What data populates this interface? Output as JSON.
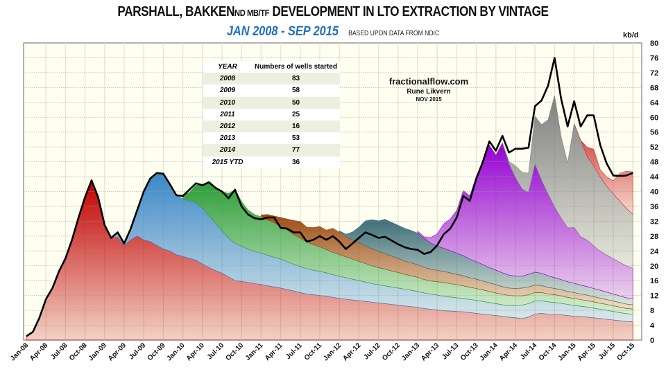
{
  "title": {
    "main_a": "PARSHALL, BAKKEN",
    "main_b": "ND MB/TF",
    "main_c": " DEVELOPMENT IN LTO EXTRACTION BY VINTAGE",
    "range": "JAN 2008 - SEP 2015",
    "basis": "BASED UPON DATA FROM NDIC"
  },
  "credit": {
    "site": "fractionalflow.com",
    "author": "Rune Likvern",
    "date": "NOV 2015"
  },
  "wells_table": {
    "header_year": "YEAR",
    "header_count": "Numbers of wells started",
    "rows": [
      {
        "year": "2008",
        "count": "83"
      },
      {
        "year": "2009",
        "count": "58"
      },
      {
        "year": "2010",
        "count": "50"
      },
      {
        "year": "2011",
        "count": "25"
      },
      {
        "year": "2012",
        "count": "16"
      },
      {
        "year": "2013",
        "count": "53"
      },
      {
        "year": "2014",
        "count": "77"
      },
      {
        "year": "2015 YTD",
        "count": "36"
      }
    ]
  },
  "chart_data": {
    "type": "area",
    "stacked": true,
    "title": "PARSHALL, BAKKEN ND MB/TF DEVELOPMENT IN LTO EXTRACTION BY VINTAGE",
    "subtitle": "JAN 2008 - SEP 2015",
    "ylabel": "kb/d",
    "xlabel": "",
    "ylim": [
      0,
      80
    ],
    "y_ticks": [
      0,
      4,
      8,
      12,
      16,
      20,
      24,
      28,
      32,
      36,
      40,
      44,
      48,
      52,
      56,
      60,
      64,
      68,
      72,
      76,
      80
    ],
    "y_axis_side": "right",
    "grid": true,
    "x_tick_labels": [
      "Jan-08",
      "Apr-08",
      "Jul-08",
      "Oct-08",
      "Jan-09",
      "Apr-09",
      "Jul-09",
      "Oct-09",
      "Jan-10",
      "Apr-10",
      "Jul-10",
      "Oct-10",
      "Jan-11",
      "Apr-11",
      "Jul-11",
      "Oct-11",
      "Jan-12",
      "Apr-12",
      "Jul-12",
      "Oct-12",
      "Jan-13",
      "Apr-13",
      "Jul-13",
      "Oct-13",
      "Jan-14",
      "Apr-14",
      "Jul-14",
      "Oct-14",
      "Jan-15",
      "Apr-15",
      "Jul-15",
      "Oct-15"
    ],
    "x_start": "Jan-08",
    "months": 94,
    "total": [
      1.0,
      2.2,
      6,
      11,
      14,
      18.5,
      22,
      27,
      33,
      38.5,
      43,
      38.5,
      31,
      27.5,
      29,
      26,
      30,
      35,
      40,
      43.5,
      45,
      44.8,
      42,
      39,
      38.8,
      40.5,
      42.2,
      41.7,
      42.5,
      41,
      40,
      38.2,
      40.5,
      36,
      33.8,
      32.8,
      32.5,
      33,
      33,
      30.2,
      30,
      29,
      29,
      26.5,
      27,
      28,
      27,
      28,
      26.5,
      24.5,
      26,
      27.5,
      29,
      28.3,
      27.5,
      27.8,
      26.8,
      25.8,
      25,
      24.5,
      24.3,
      23.2,
      23.7,
      25.5,
      28.5,
      30,
      33,
      38.8,
      37.5,
      43.5,
      48,
      53.5,
      51,
      55,
      50.5,
      51.5,
      51.5,
      51.8,
      63,
      64.5,
      68.5,
      76,
      65,
      57.5,
      64.3,
      57.5,
      60.5,
      60.5,
      52.5,
      47.5,
      44.3,
      44.2,
      44.3,
      45
    ],
    "series": [
      {
        "name": "2008 vintage",
        "color": "#c00000",
        "start": 0,
        "values": [
          1.0,
          2.2,
          6,
          11,
          14,
          18.5,
          22,
          27,
          33,
          38.5,
          43,
          38.5,
          31,
          27.5,
          27.7,
          25.5,
          27,
          28,
          27,
          26.5,
          25.5,
          24.5,
          24,
          23,
          22.5,
          22,
          21.5,
          20.5,
          19.5,
          18.7,
          18,
          17,
          16,
          15.8,
          15.5,
          15.2,
          15,
          14.6,
          14.3,
          14,
          13.6,
          13.2,
          12.8,
          12.4,
          12.2,
          12,
          11.8,
          11.5,
          11.2,
          11,
          10.8,
          10.6,
          10.4,
          10.2,
          10,
          9.8,
          9.6,
          9.4,
          9.2,
          9,
          8.8,
          8.5,
          8.3,
          8.1,
          7.9,
          7.8,
          7.7,
          7.6,
          7.4,
          7.2,
          7,
          6.8,
          6.6,
          6.4,
          6.2,
          6,
          5.8,
          6.2,
          7,
          7.2,
          7,
          6.9,
          6.8,
          6.6,
          6.4,
          6.3,
          6.2,
          6,
          5.8,
          5.6,
          5.4,
          5.2,
          5,
          4.9
        ]
      },
      {
        "name": "2009 vintage",
        "color": "#3a86c8",
        "start": 12,
        "values": [
          0,
          0,
          1.3,
          0.5,
          3,
          7,
          13,
          17,
          19.5,
          20.3,
          18,
          16,
          15.5,
          15.5,
          15.5,
          15,
          14,
          12.8,
          11.5,
          10.5,
          10,
          9.5,
          9,
          8.6,
          8.4,
          8.2,
          8,
          7.8,
          7.5,
          7.2,
          7,
          6.8,
          6.6,
          6.5,
          6.3,
          6.1,
          6,
          5.8,
          5.6,
          5.4,
          5.2,
          5,
          4.9,
          4.8,
          4.7,
          4.6,
          4.5,
          4.4,
          4.3,
          4.2,
          4.1,
          4,
          3.9,
          3.8,
          3.7,
          3.6,
          3.5,
          3.5,
          3.4,
          3.3,
          3.2,
          3.1,
          3.1,
          3.3,
          3.6,
          3.6,
          3.5,
          3.4,
          3.3,
          3.2,
          3.1,
          3.0,
          2.9,
          2.8,
          2.7,
          2.6,
          2.5,
          2.4,
          2.3,
          2.2,
          2.1,
          2.1
        ]
      },
      {
        "name": "2010 vintage",
        "color": "#2e9e3a",
        "start": 24,
        "values": [
          0.8,
          2.3,
          4.7,
          6.2,
          8.8,
          9.5,
          10.5,
          12,
          14.5,
          12,
          10.5,
          10,
          9.8,
          9.5,
          9.3,
          8.8,
          8.5,
          8,
          7.6,
          7.2,
          6.9,
          6.6,
          6.3,
          6,
          5.8,
          5.6,
          5.4,
          5.2,
          5,
          4.8,
          4.6,
          4.5,
          4.3,
          4.2,
          4,
          3.9,
          3.8,
          3.6,
          3.5,
          3.6,
          3.7,
          3.6,
          3.5,
          3.4,
          3.3,
          3.2,
          3.1,
          3,
          2.9,
          2.8,
          2.7,
          2.6,
          2.5,
          2.4,
          2.3,
          2.2,
          2.1,
          2.1,
          2,
          1.9,
          1.9,
          1.8,
          1.7,
          1.7,
          1.6,
          1.6,
          1.5,
          1.5,
          1.4,
          1.4
        ]
      },
      {
        "name": "2011 vintage",
        "color": "#9c4a10",
        "start": 36,
        "values": [
          0.5,
          1.5,
          1.8,
          2.4,
          3,
          3.8,
          4.5,
          4,
          4.6,
          5.5,
          5.2,
          6.5,
          6,
          5.5,
          5.2,
          5,
          4.8,
          4.6,
          4.4,
          4.2,
          4,
          3.8,
          3.6,
          3.5,
          3.4,
          3.3,
          3.2,
          3.1,
          3,
          2.9,
          2.8,
          2.7,
          2.6,
          2.5,
          2.4,
          2.3,
          2.2,
          2.1,
          2,
          2,
          2.1,
          2.1,
          2,
          1.9,
          1.8,
          1.7,
          1.7,
          1.6,
          1.6,
          1.5,
          1.5,
          1.4,
          1.4,
          1.3,
          1.3,
          1.2,
          1.2,
          1.1
        ]
      },
      {
        "name": "2012 vintage",
        "color": "#3d6e78",
        "start": 48,
        "values": [
          0.4,
          0.6,
          2.1,
          4.2,
          6.7,
          7.8,
          8.2,
          9.2,
          9.1,
          8.9,
          8.8,
          8.7,
          8.5,
          7.8,
          7,
          6.5,
          6.2,
          6,
          5.7,
          5.4,
          5,
          4.7,
          4.4,
          4.1,
          3.9,
          3.7,
          3.5,
          3.3,
          3.2,
          3.4,
          3.5,
          3.3,
          3.1,
          2.9,
          2.7,
          2.6,
          2.5,
          2.4,
          2.3,
          2.2,
          2.1,
          2,
          1.9,
          1.8,
          1.7,
          1.6
        ]
      },
      {
        "name": "2013 vintage",
        "color": "#9400d3",
        "start": 60,
        "values": [
          0.5,
          0.4,
          1.5,
          3.3,
          6.6,
          8.5,
          11.5,
          17.5,
          17,
          23,
          27.5,
          33,
          31,
          35,
          30,
          26.5,
          23.5,
          22,
          29,
          25,
          22,
          19,
          16.5,
          14.5,
          15,
          13,
          12.5,
          11.5,
          10.5,
          10,
          9.5,
          9,
          8.6,
          8.2
        ]
      },
      {
        "name": "2014 vintage",
        "color": "#7f7f7f",
        "start": 72,
        "values": [
          0,
          0,
          0.6,
          3.2,
          4.5,
          5.2,
          13,
          15,
          20,
          30,
          22,
          17.5,
          28,
          26,
          22.5,
          21.5,
          20,
          18.5,
          17.5,
          16.5,
          15.5,
          14.5
        ]
      },
      {
        "name": "2015 vintage",
        "color": "#d23030",
        "start": 84,
        "values": [
          0,
          0,
          2.5,
          4.5,
          2,
          2.5,
          3.5,
          7.5,
          10,
          11.5
        ]
      }
    ]
  }
}
